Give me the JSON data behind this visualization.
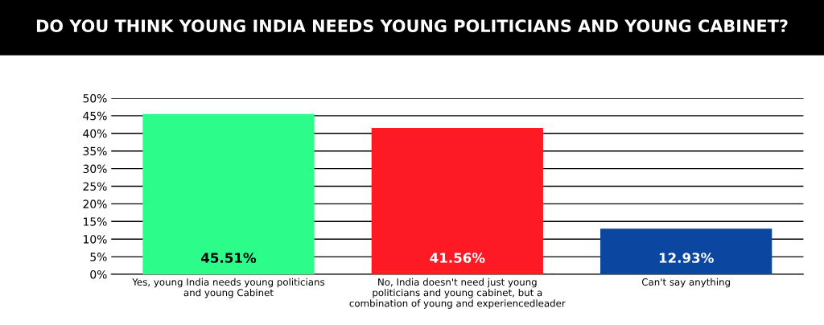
{
  "chart_data": {
    "type": "bar",
    "title": "DO YOU THINK YOUNG INDIA NEEDS YOUNG POLITICIANS AND YOUNG CABINET?",
    "categories": [
      "Yes, young India needs young politicians\nand young Cabinet",
      "No, India doesn't need just young\npoliticians and young cabinet, but a\ncombination of young and experiencedleader",
      "Can't say anything"
    ],
    "values": [
      45.51,
      41.56,
      12.93
    ],
    "colors": [
      "#2cfc8a",
      "#fe1a24",
      "#0b47a0"
    ],
    "value_labels": [
      "45.51%",
      "41.56%",
      "12.93%"
    ],
    "ylim": [
      0,
      50
    ],
    "yticks": [
      {
        "value": 0,
        "label": "0%"
      },
      {
        "value": 5,
        "label": "5%"
      },
      {
        "value": 10,
        "label": "10%"
      },
      {
        "value": 15,
        "label": "15%"
      },
      {
        "value": 20,
        "label": "20%"
      },
      {
        "value": 25,
        "label": "25%"
      },
      {
        "value": 30,
        "label": "30%"
      },
      {
        "value": 35,
        "label": "35%"
      },
      {
        "value": 40,
        "label": "40%"
      },
      {
        "value": 45,
        "label": "45%"
      },
      {
        "value": 50,
        "label": "50%"
      }
    ],
    "grid": "y",
    "legend": false
  }
}
